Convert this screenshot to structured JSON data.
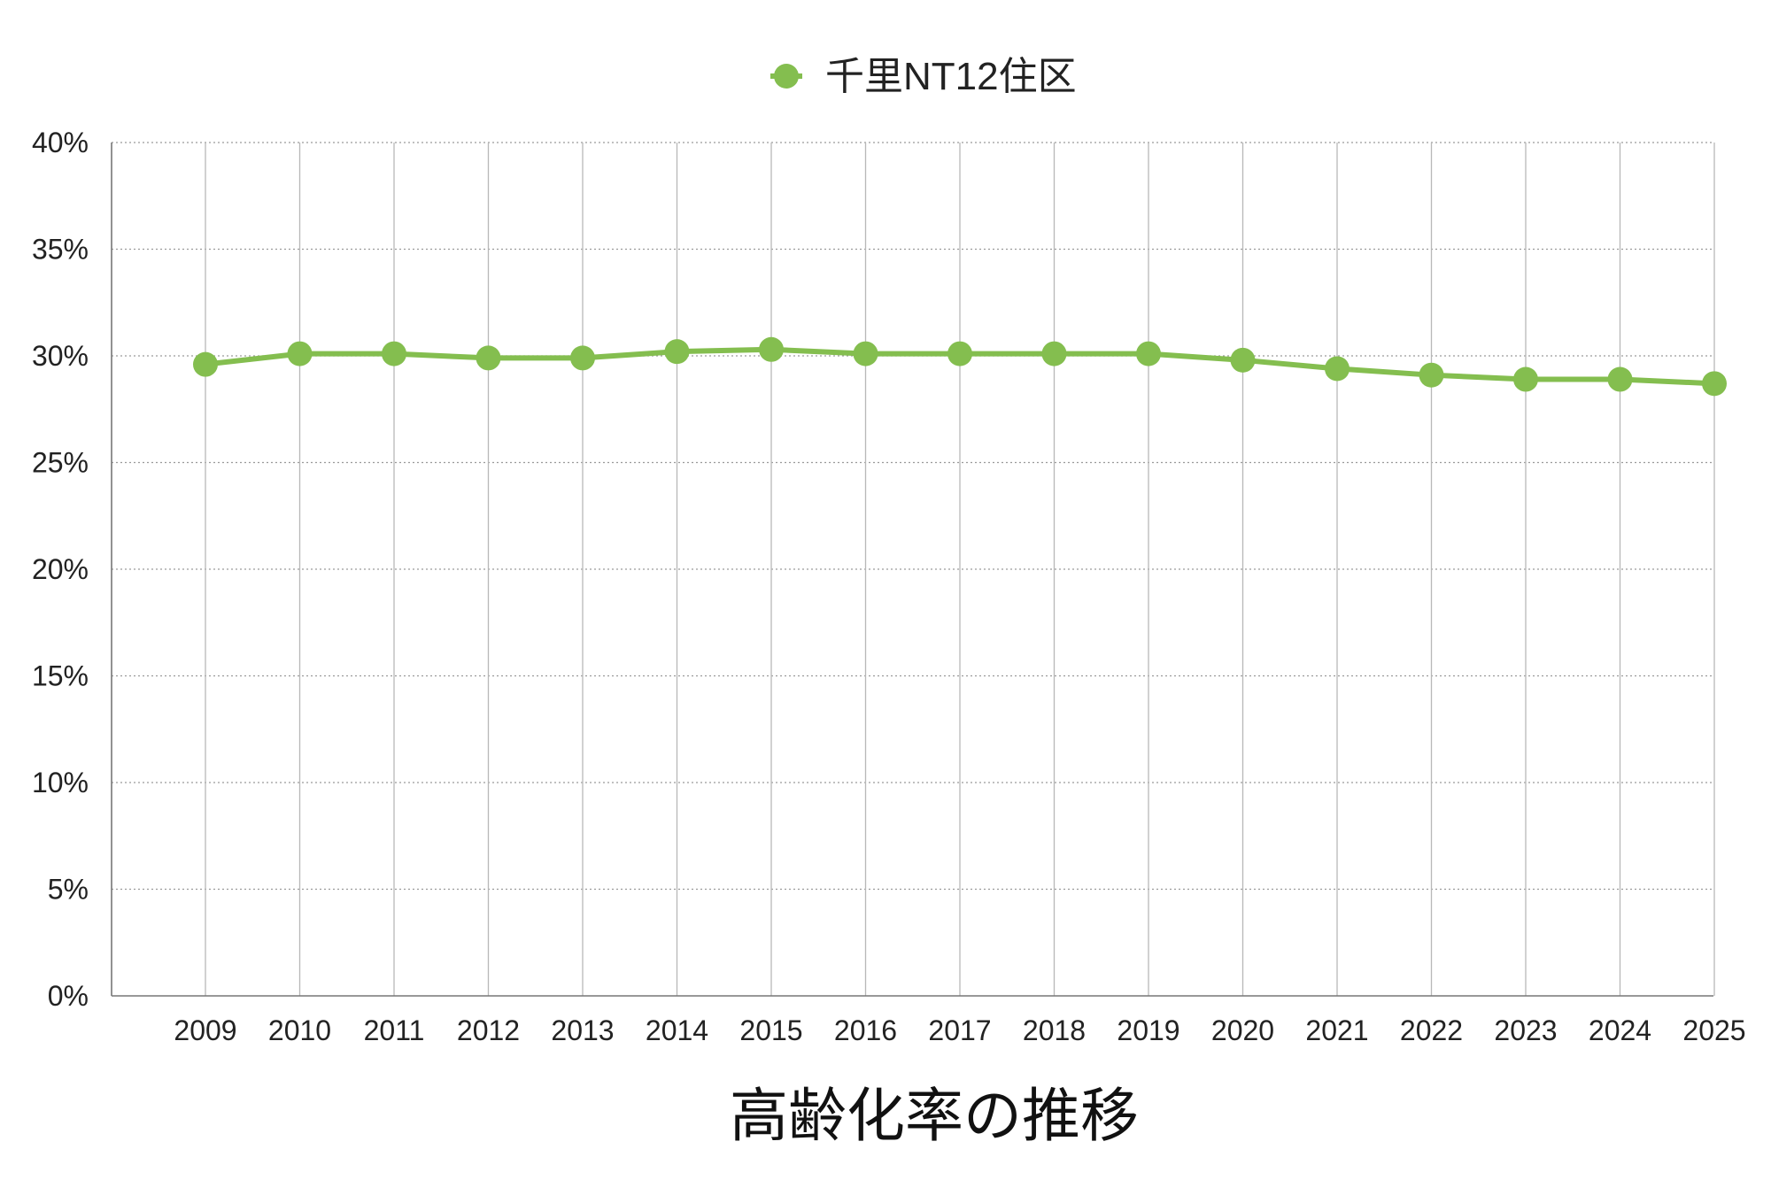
{
  "chart_data": {
    "type": "line",
    "title": "高齢化率の推移",
    "xlabel": "",
    "ylabel": "",
    "x": [
      "2009",
      "2010",
      "2011",
      "2012",
      "2013",
      "2014",
      "2015",
      "2016",
      "2017",
      "2018",
      "2019",
      "2020",
      "2021",
      "2022",
      "2023",
      "2024",
      "2025"
    ],
    "series": [
      {
        "name": "千里NT12住区",
        "color": "#84be4f",
        "values": [
          29.6,
          30.1,
          30.1,
          29.9,
          29.9,
          30.2,
          30.3,
          30.1,
          30.1,
          30.1,
          30.1,
          29.8,
          29.4,
          29.1,
          28.9,
          28.9,
          28.7
        ]
      }
    ],
    "ylim": [
      0,
      40
    ],
    "yticks": [
      0,
      5,
      10,
      15,
      20,
      25,
      30,
      35,
      40
    ],
    "ytick_format": "{v}%",
    "grid": true,
    "legend_position": "top-center"
  }
}
